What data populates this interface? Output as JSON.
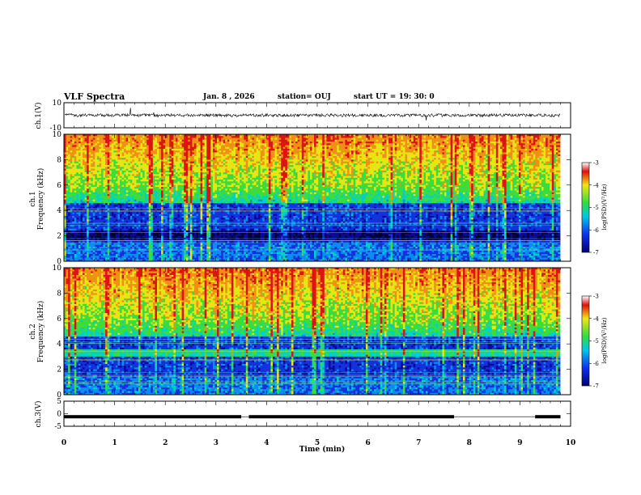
{
  "header": {
    "title": "VLF Spectra",
    "date": "Jan. 8 , 2026",
    "station": "station= OUJ",
    "start_ut": "start UT =  19: 30: 0"
  },
  "chart_data": [
    {
      "type": "line",
      "id": "ch1-waveform",
      "ylabel": "ch.1(V)",
      "ylim": [
        -10,
        10
      ],
      "y_ticks": [
        "10",
        "-10"
      ],
      "baseline": 0,
      "xlim": [
        0,
        10
      ]
    },
    {
      "type": "heatmap",
      "id": "ch1-spectrogram",
      "ylabel": "ch.1 Frequency (kHz)",
      "ylim": [
        0,
        10
      ],
      "y_ticks": [
        "10",
        "8",
        "6",
        "4",
        "2",
        "0"
      ],
      "xlim": [
        0,
        10
      ],
      "colorbar": {
        "label": "log(PSD)(V²/Hz)",
        "range": [
          -7,
          -3
        ],
        "ticks": [
          "-3",
          "-4",
          "-5",
          "-6",
          "-7"
        ]
      }
    },
    {
      "type": "heatmap",
      "id": "ch2-spectrogram",
      "ylabel": "ch.2 Frequency (kHz)",
      "ylim": [
        0,
        10
      ],
      "y_ticks": [
        "10",
        "8",
        "6",
        "4",
        "2",
        "0"
      ],
      "xlim": [
        0,
        10
      ],
      "colorbar": {
        "label": "log(PSD)(V²/Hz)",
        "range": [
          -7,
          -3
        ],
        "ticks": [
          "-3",
          "-4",
          "-5",
          "-6",
          "-7"
        ]
      }
    },
    {
      "type": "line",
      "id": "ch3-signal",
      "ylabel": "ch.3(V)",
      "ylim": [
        -5,
        5
      ],
      "y_ticks": [
        "5",
        "0",
        "-5"
      ],
      "level": -1.2,
      "gaps_min": [
        [
          3.5,
          3.65
        ],
        [
          7.7,
          9.3
        ]
      ],
      "xlim": [
        0,
        10
      ]
    }
  ],
  "x_axis": {
    "label": "Time  (min)",
    "ticks": [
      "0",
      "1",
      "2",
      "3",
      "4",
      "5",
      "6",
      "7",
      "8",
      "9",
      "10"
    ],
    "range": [
      0,
      10
    ]
  },
  "colors": {
    "frame": "#000000",
    "deep": "#000080",
    "blue": "#1040e0",
    "cyan": "#00c8e6",
    "green": "#32dc50",
    "yellow": "#f0e614",
    "red": "#dc1414"
  }
}
